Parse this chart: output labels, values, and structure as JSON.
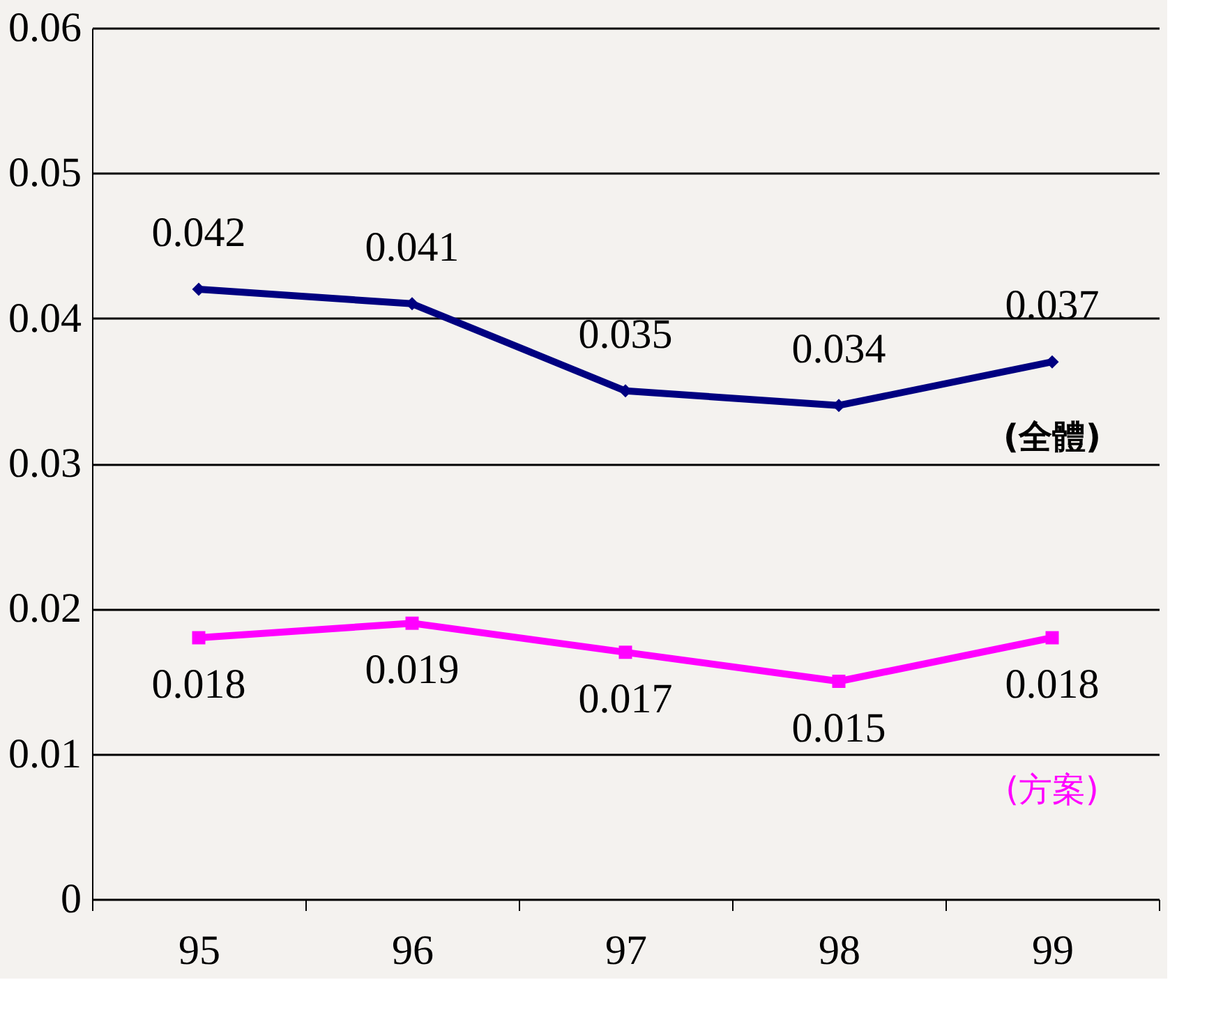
{
  "chart_data": {
    "type": "line",
    "categories": [
      "95",
      "96",
      "97",
      "98",
      "99"
    ],
    "series": [
      {
        "name": "(全體)",
        "color": "#000080",
        "marker": "diamond",
        "values": [
          0.042,
          0.041,
          0.035,
          0.034,
          0.037
        ]
      },
      {
        "name": "(方案)",
        "color": "#ff00ff",
        "marker": "square",
        "values": [
          0.018,
          0.019,
          0.017,
          0.015,
          0.018
        ]
      }
    ],
    "ylim": [
      0,
      0.06
    ],
    "yticks": [
      0,
      0.01,
      0.02,
      0.03,
      0.04,
      0.05,
      0.06
    ],
    "grid": "y",
    "data_labels": true,
    "legend": false,
    "line_style": "solid"
  }
}
